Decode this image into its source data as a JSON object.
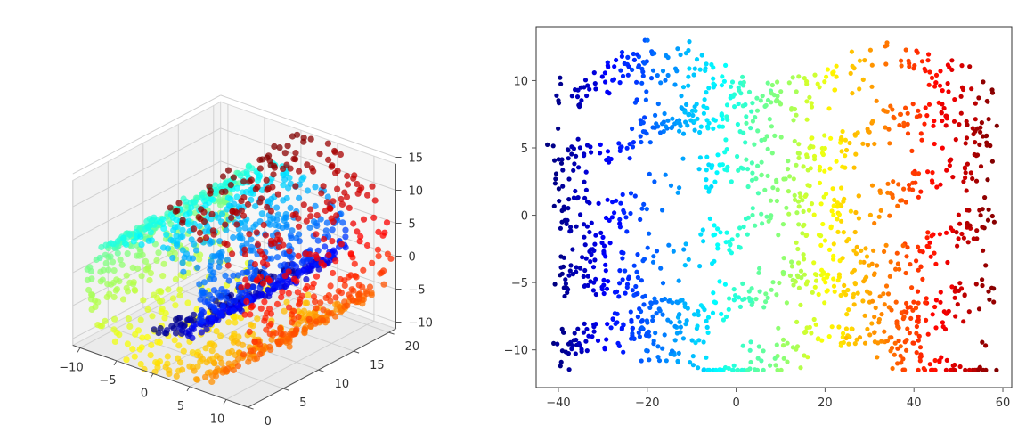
{
  "chart_data": [
    {
      "type": "scatter",
      "subtype": "3d-scatter",
      "title": "",
      "xlabel": "",
      "ylabel": "",
      "zlabel": "",
      "colormap": "jet",
      "grid": true,
      "axes": {
        "x": {
          "ticks": [
            -10,
            -5,
            0,
            5,
            10
          ],
          "tick_labels": [
            "−10",
            "−5",
            "0",
            "5",
            "10"
          ],
          "range": [
            -11,
            13
          ]
        },
        "y": {
          "ticks": [
            0,
            5,
            10,
            15,
            20
          ],
          "tick_labels": [
            "0",
            "5",
            "10",
            "15",
            "20"
          ],
          "range": [
            0,
            21
          ]
        },
        "z": {
          "ticks": [
            15,
            10,
            5,
            0,
            -5,
            -10
          ],
          "tick_labels": [
            "15",
            "10",
            "5",
            "0",
            "−5",
            "−10"
          ],
          "range": [
            -11,
            14
          ]
        }
      },
      "data_description": "swiss roll: x = t*cos(t), y in [0,21], z = t*sin(t), t from 4.7 to 14.1, color by t",
      "t_range": [
        4.7,
        14.1
      ],
      "point_count": 1500
    },
    {
      "type": "scatter",
      "title": "",
      "xlabel": "",
      "ylabel": "",
      "colormap": "jet",
      "grid": false,
      "xlim": [
        -45,
        62
      ],
      "ylim": [
        -12.8,
        14
      ],
      "x_ticks": [
        -40,
        -20,
        0,
        20,
        40,
        60
      ],
      "x_tick_labels": [
        "−40",
        "−20",
        "0",
        "20",
        "40",
        "60"
      ],
      "y_ticks": [
        10,
        5,
        0,
        -5,
        -10
      ],
      "y_tick_labels": [
        "10",
        "5",
        "0",
        "−5",
        "−10"
      ],
      "x_range_of_points": [
        -41,
        58
      ],
      "y_range_of_points": [
        -11.5,
        13
      ],
      "point_count": 1500
    }
  ]
}
